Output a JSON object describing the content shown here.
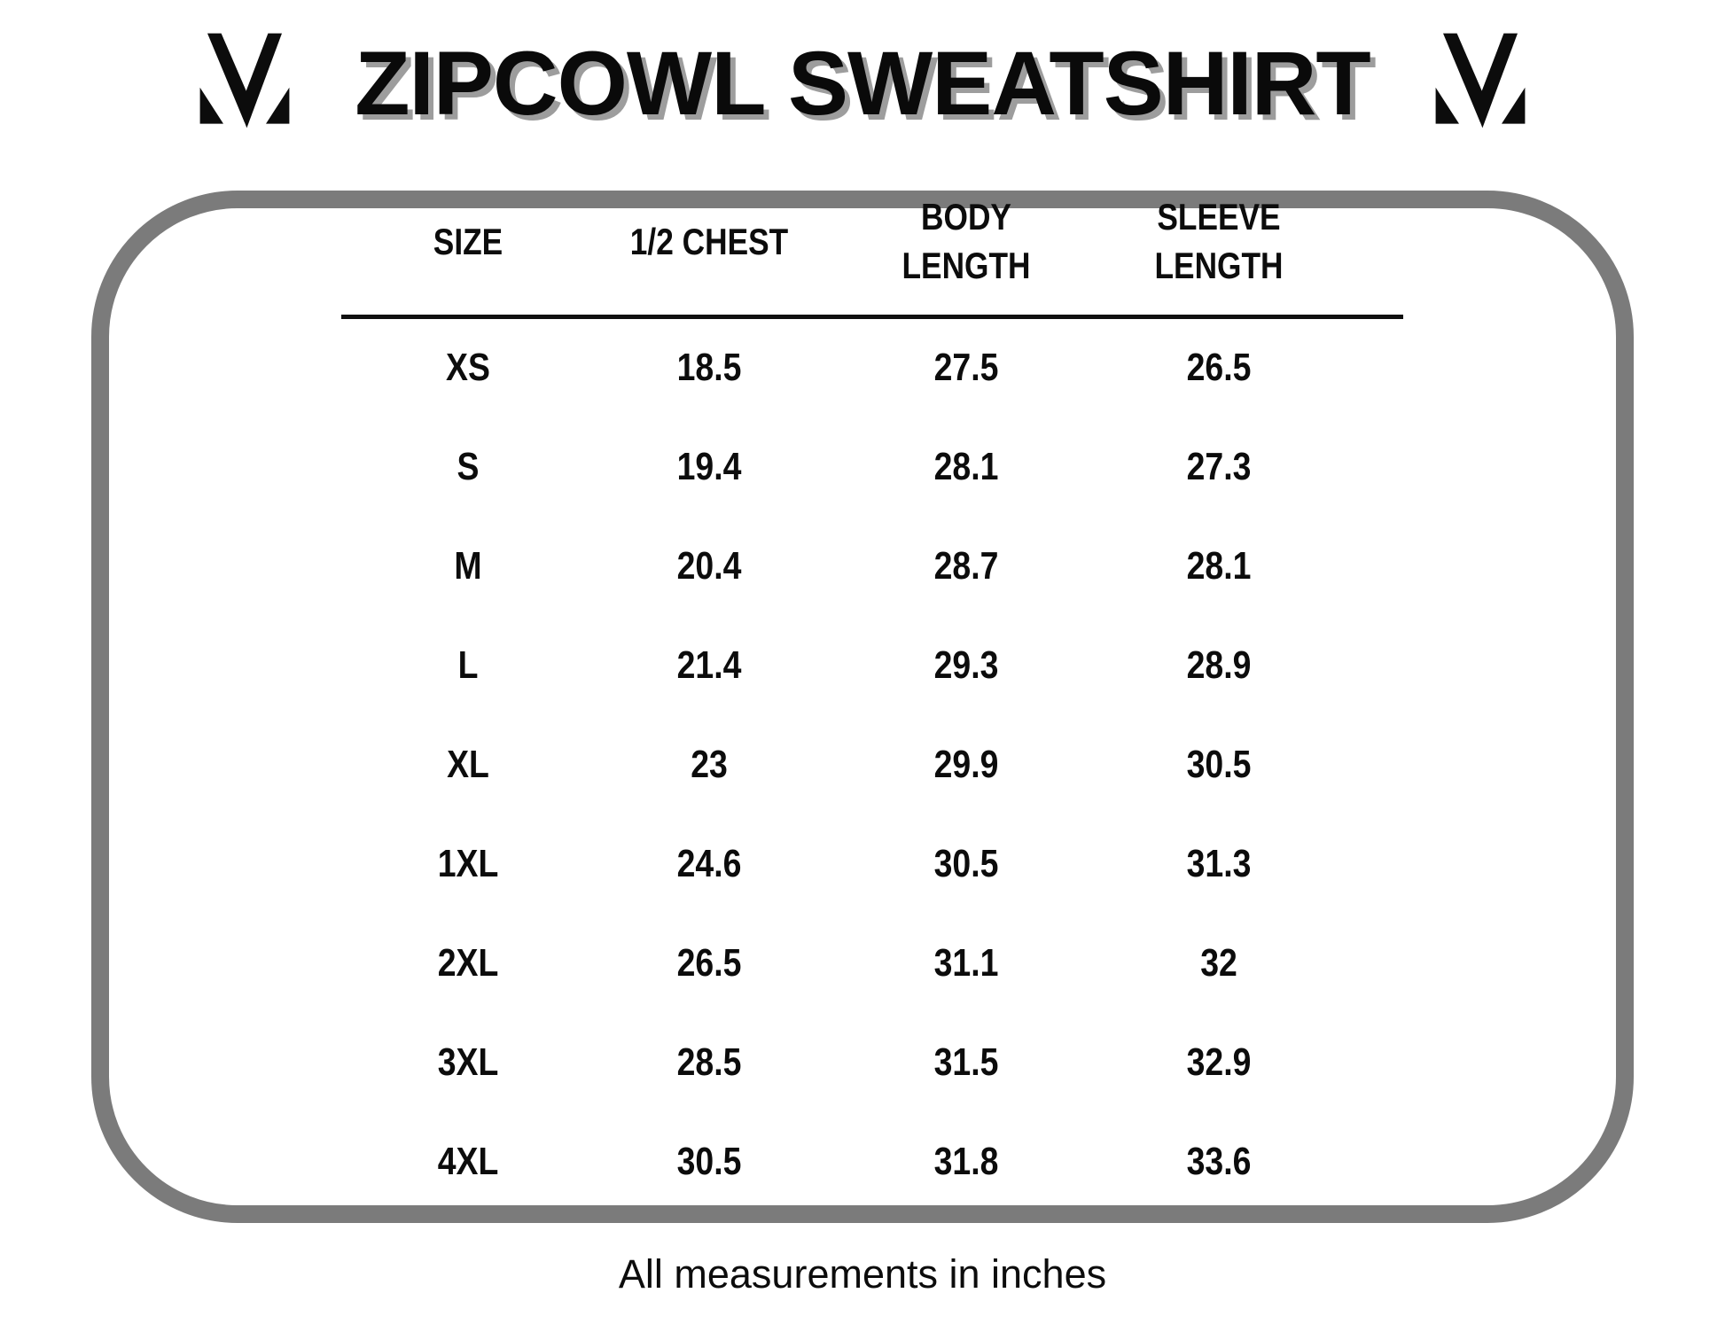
{
  "title": "ZIPCOWL SWEATSHIRT",
  "brand": {
    "logo_icon": "m-chevron-logo"
  },
  "size_chart": {
    "columns": [
      "SIZE",
      "1/2 CHEST",
      "BODY LENGTH",
      "SLEEVE LENGTH"
    ],
    "rows": [
      [
        "XS",
        "18.5",
        "27.5",
        "26.5"
      ],
      [
        "S",
        "19.4",
        "28.1",
        "27.3"
      ],
      [
        "M",
        "20.4",
        "28.7",
        "28.1"
      ],
      [
        "L",
        "21.4",
        "29.3",
        "28.9"
      ],
      [
        "XL",
        "23",
        "29.9",
        "30.5"
      ],
      [
        "1XL",
        "24.6",
        "30.5",
        "31.3"
      ],
      [
        "2XL",
        "26.5",
        "31.1",
        "32"
      ],
      [
        "3XL",
        "28.5",
        "31.5",
        "32.9"
      ],
      [
        "4XL",
        "30.5",
        "31.8",
        "33.6"
      ]
    ]
  },
  "footer": {
    "note": "All measurements in inches"
  },
  "colors": {
    "frame_gray": "#7b7b7b",
    "title_shadow_gray": "#9d9d9d",
    "ink": "#0c0c0c"
  }
}
